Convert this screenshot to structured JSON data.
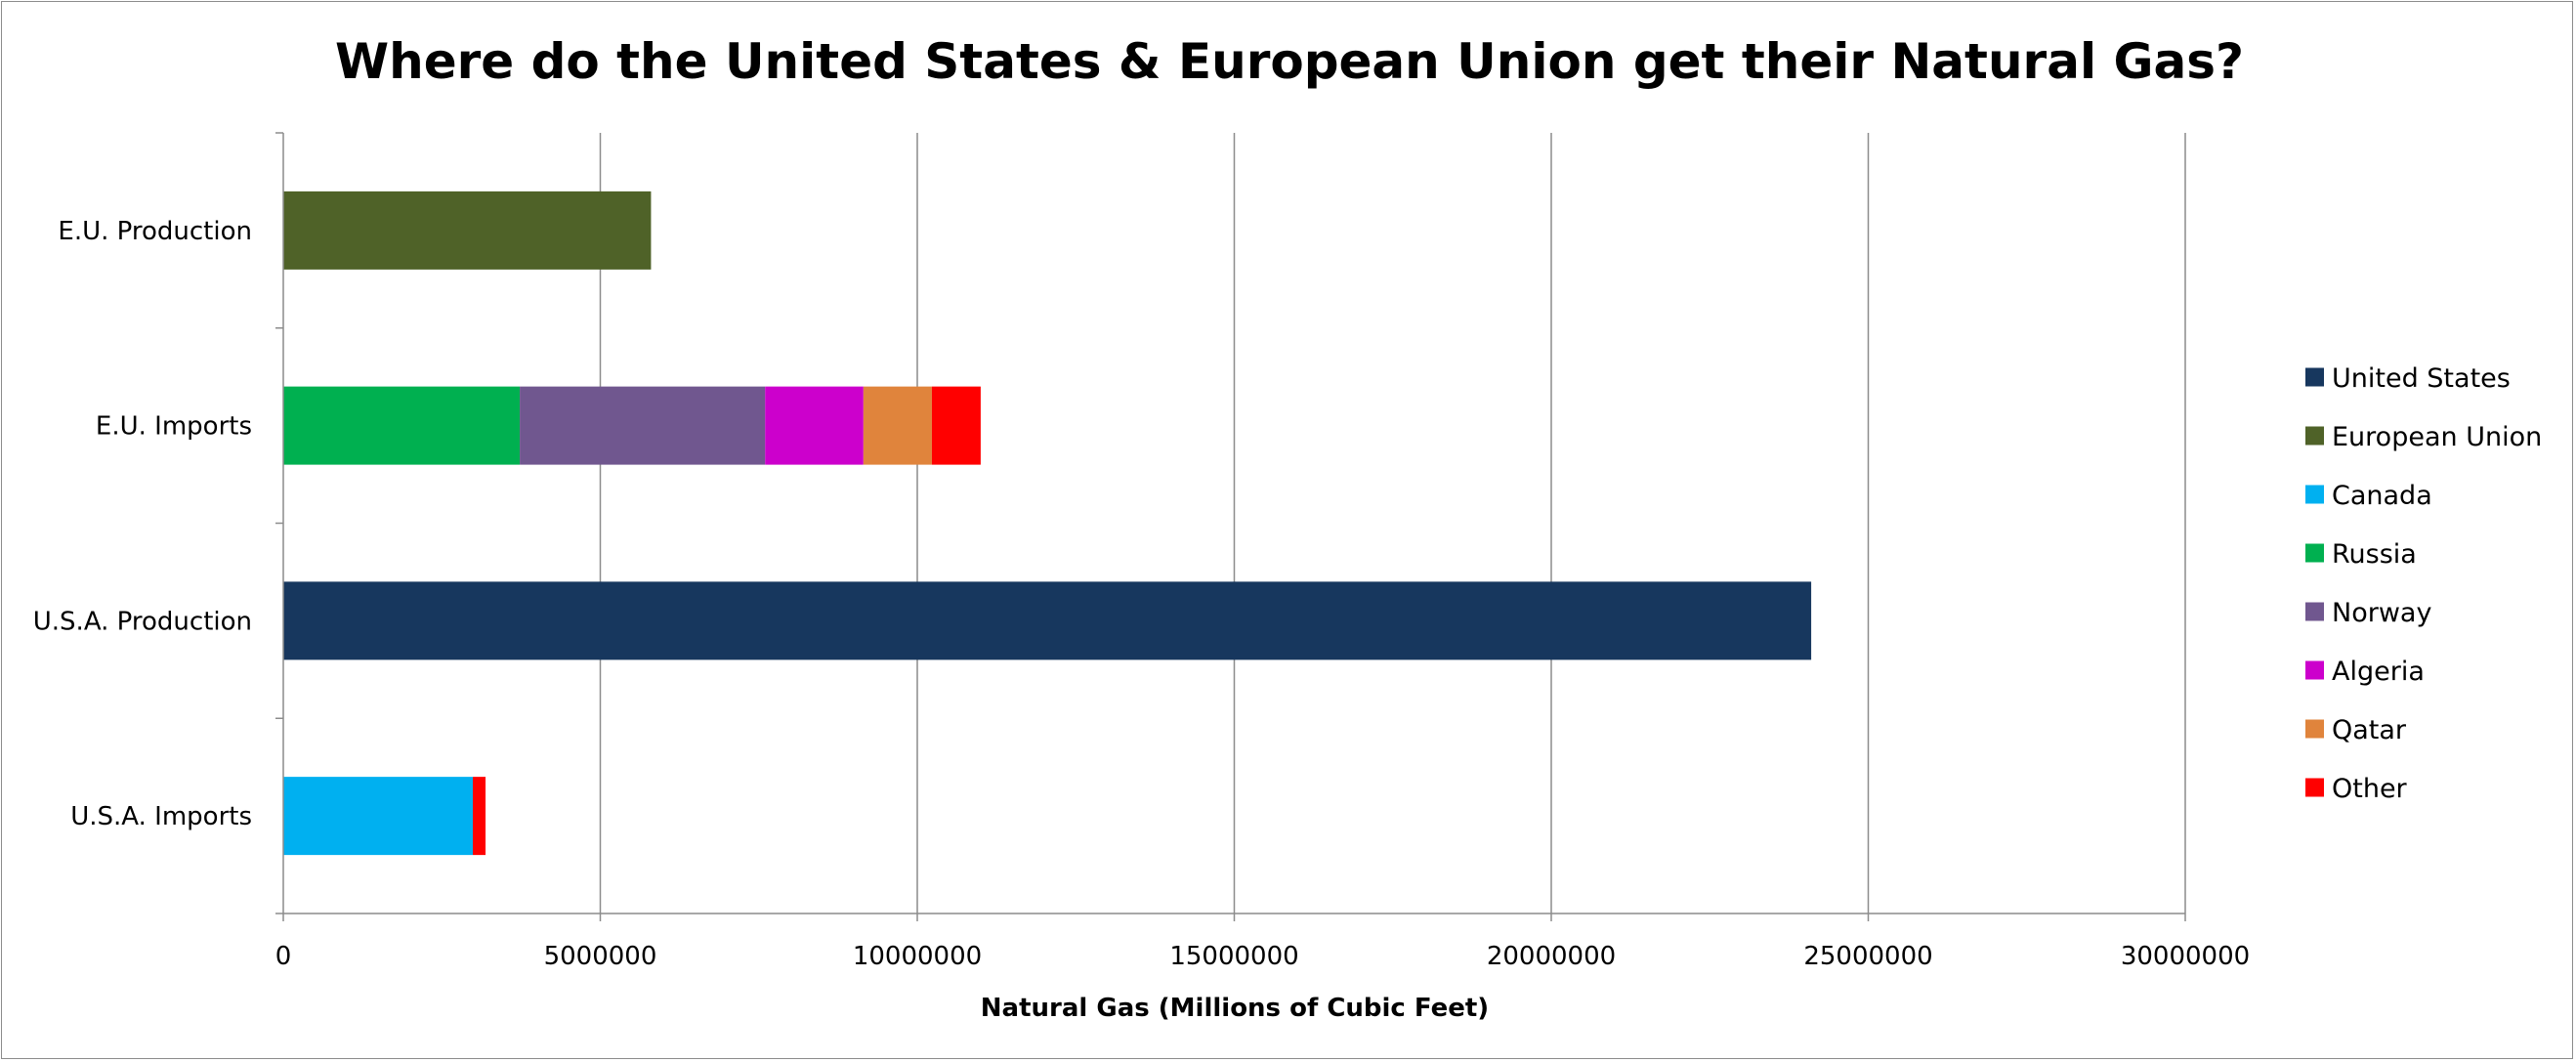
{
  "chart_data": {
    "type": "bar",
    "orientation": "horizontal",
    "stacked": true,
    "title": "Where do the United States & European Union get their Natural Gas?",
    "xlabel": "Natural Gas (Millions  of Cubic Feet)",
    "ylabel": "",
    "xlim": [
      0,
      30000000
    ],
    "xticks": [
      "0",
      "5000000",
      "10000000",
      "15000000",
      "20000000",
      "25000000",
      "30000000"
    ],
    "grid": true,
    "legend_position": "right",
    "categories": [
      "E.U. Production",
      "E.U. Imports",
      "U.S.A. Production",
      "U.S.A. Imports"
    ],
    "series": [
      {
        "name": "United States",
        "color": "#17375e",
        "values": [
          0,
          0,
          24100000,
          0
        ]
      },
      {
        "name": "European Union",
        "color": "#4f6228",
        "values": [
          5800000,
          0,
          0,
          0
        ]
      },
      {
        "name": "Canada",
        "color": "#00b0f0",
        "values": [
          0,
          0,
          0,
          2990000
        ]
      },
      {
        "name": "Russia",
        "color": "#00b050",
        "values": [
          0,
          3730000,
          0,
          0
        ]
      },
      {
        "name": "Norway",
        "color": "#70578f",
        "values": [
          0,
          3870000,
          0,
          0
        ]
      },
      {
        "name": "Algeria",
        "color": "#cc00cc",
        "values": [
          0,
          1550000,
          0,
          0
        ]
      },
      {
        "name": "Qatar",
        "color": "#e0843c",
        "values": [
          0,
          1080000,
          0,
          0
        ]
      },
      {
        "name": "Other",
        "color": "#ff0000",
        "values": [
          0,
          770000,
          0,
          200000
        ]
      }
    ]
  }
}
